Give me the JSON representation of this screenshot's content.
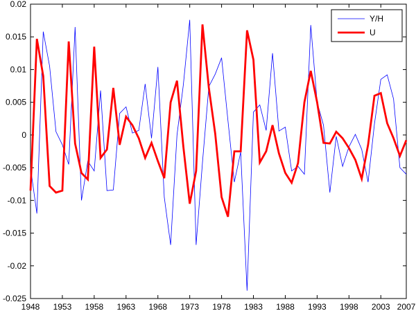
{
  "chart_data": {
    "type": "line",
    "title": "",
    "xlabel": "",
    "ylabel": "",
    "xlim": [
      1948,
      2007
    ],
    "ylim": [
      -0.025,
      0.02
    ],
    "x_ticks": [
      1948,
      1953,
      1958,
      1963,
      1968,
      1973,
      1978,
      1983,
      1988,
      1993,
      1998,
      2003,
      2007
    ],
    "x_tick_labels": [
      "1948",
      "1953",
      "1958",
      "1963",
      "1968",
      "1973",
      "1978",
      "1983",
      "1988",
      "1993",
      "1998",
      "2003",
      "2007"
    ],
    "y_ticks": [
      -0.025,
      -0.02,
      -0.015,
      -0.01,
      -0.005,
      0,
      0.005,
      0.01,
      0.015,
      0.02
    ],
    "y_tick_labels": [
      "-0.025",
      "-0.02",
      "-0.015",
      "-0.01",
      "-0.005",
      "0",
      "0.005",
      "0.01",
      "0.015",
      "0.02"
    ],
    "grid": false,
    "legend": {
      "position": "top-right"
    },
    "x": [
      1948,
      1949,
      1950,
      1951,
      1952,
      1953,
      1954,
      1955,
      1956,
      1957,
      1958,
      1959,
      1960,
      1961,
      1962,
      1963,
      1964,
      1965,
      1966,
      1967,
      1968,
      1969,
      1970,
      1971,
      1972,
      1973,
      1974,
      1975,
      1976,
      1977,
      1978,
      1979,
      1980,
      1981,
      1982,
      1983,
      1984,
      1985,
      1986,
      1987,
      1988,
      1989,
      1990,
      1991,
      1992,
      1993,
      1994,
      1995,
      1996,
      1997,
      1998,
      1999,
      2000,
      2001,
      2002,
      2003,
      2004,
      2005,
      2006,
      2007
    ],
    "series": [
      {
        "name": "Y/H",
        "color": "#0000ff",
        "line_style": "thin",
        "values": [
          -0.005,
          -0.012,
          0.0158,
          0.0105,
          0.0005,
          -0.0015,
          -0.0045,
          0.0165,
          -0.01,
          -0.004,
          -0.0055,
          0.0068,
          -0.0085,
          -0.0084,
          0.0033,
          0.0043,
          0.0003,
          0.0007,
          0.0078,
          -0.0005,
          0.0104,
          -0.0095,
          -0.0168,
          0.0,
          0.0077,
          0.0176,
          -0.0168,
          -0.0042,
          0.0074,
          0.0093,
          0.0118,
          0.0022,
          -0.0072,
          -0.0026,
          -0.0238,
          0.0035,
          0.0046,
          0.0007,
          0.0125,
          0.0006,
          0.0012,
          -0.0055,
          -0.0048,
          -0.006,
          0.0168,
          0.005,
          0.0015,
          -0.0088,
          -0.0002,
          -0.0048,
          -0.0018,
          0.0001,
          -0.0022,
          -0.0072,
          0.0017,
          0.0085,
          0.0092,
          0.0055,
          -0.005,
          -0.006
        ]
      },
      {
        "name": "U",
        "color": "#ff0000",
        "line_style": "thick",
        "values": [
          -0.0085,
          0.0147,
          0.009,
          -0.0078,
          -0.0088,
          -0.0085,
          0.0143,
          -0.0013,
          -0.0058,
          -0.0068,
          0.0135,
          -0.0035,
          -0.0022,
          0.0072,
          -0.0015,
          0.0028,
          0.0015,
          -0.0005,
          -0.0035,
          -0.0012,
          -0.004,
          -0.0066,
          0.005,
          0.0083,
          -0.0018,
          -0.0105,
          -0.0055,
          0.0169,
          0.0072,
          0.0002,
          -0.0095,
          -0.0125,
          -0.0025,
          -0.0025,
          0.016,
          0.0115,
          -0.0042,
          -0.0025,
          0.0015,
          -0.0028,
          -0.0058,
          -0.0073,
          -0.0043,
          0.005,
          0.0098,
          0.005,
          -0.0012,
          -0.0013,
          0.0005,
          -0.0005,
          -0.002,
          -0.0038,
          -0.0067,
          -0.0015,
          0.006,
          0.0064,
          0.0018,
          -0.0005,
          -0.0032,
          -0.0008
        ]
      }
    ]
  }
}
